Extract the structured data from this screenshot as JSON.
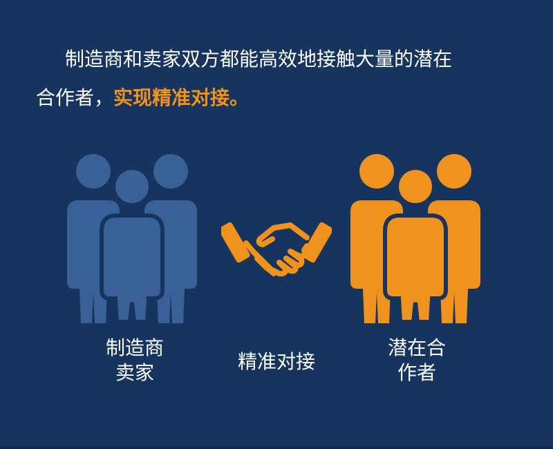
{
  "headline": {
    "line1": "制造商和卖家双方都能高效地接触大量的潜在",
    "line2_plain": "合作者，",
    "line2_highlight": "实现精准对接。"
  },
  "groups": {
    "left": {
      "icon": "people-group-icon",
      "color": "#3a6098",
      "label_line1": "制造商",
      "label_line2": "卖家"
    },
    "middle": {
      "icon": "handshake-icon",
      "color": "#f0921e",
      "label": "精准对接"
    },
    "right": {
      "icon": "people-group-icon",
      "color": "#f0921e",
      "label_line1": "潜在合",
      "label_line2": "作者"
    }
  },
  "colors": {
    "background": "#17345f",
    "accent": "#f0921e",
    "blue_figures": "#3a6098",
    "text": "#ffffff"
  }
}
